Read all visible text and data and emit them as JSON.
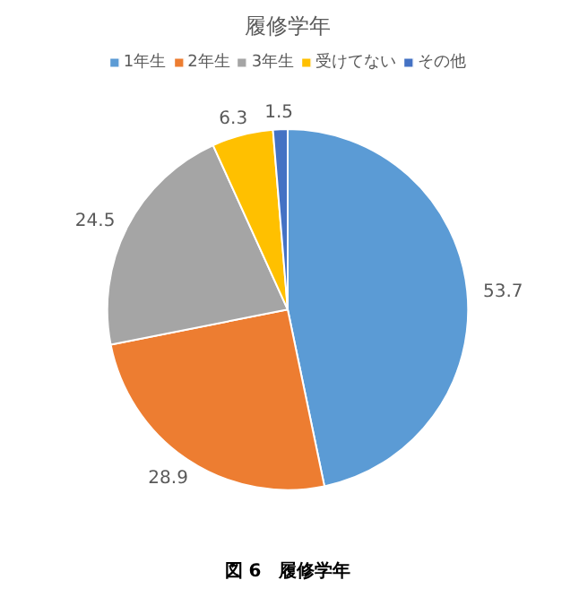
{
  "chart_data": {
    "type": "pie",
    "title": "履修学年",
    "categories": [
      "1年生",
      "2年生",
      "3年生",
      "受けてない",
      "その他"
    ],
    "values": [
      53.7,
      28.9,
      24.5,
      6.3,
      1.5
    ],
    "colors": [
      "#5b9bd5",
      "#ed7d31",
      "#a5a5a5",
      "#ffc000",
      "#4472c4"
    ],
    "data_labels": true,
    "legend": "top",
    "annotations": [
      "図 6　履修学年"
    ]
  }
}
